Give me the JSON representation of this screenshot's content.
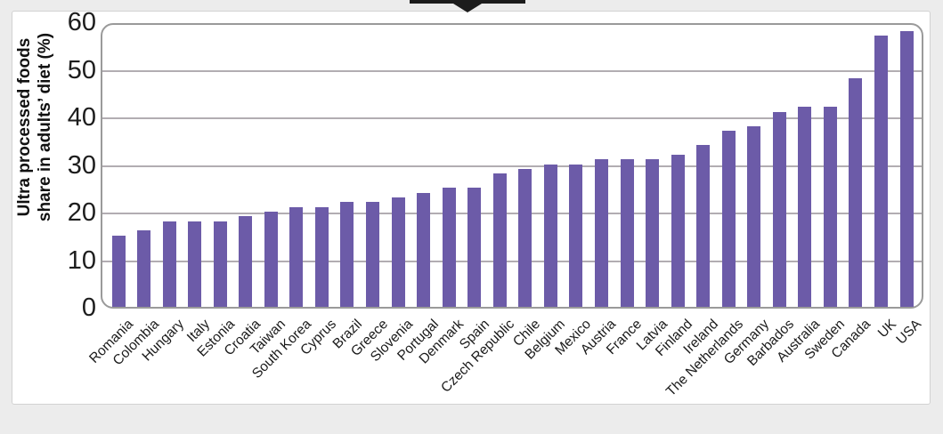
{
  "page": {
    "background_color": "#ececec",
    "card_color": "#ffffff",
    "tooltip_remnant_color": "#1c1c1c"
  },
  "chart_data": {
    "type": "bar",
    "title": "",
    "xlabel": "",
    "ylabel": "Ultra processed foods share in adults' diet (%)",
    "ylabel_lines": [
      "Ultra processed foods",
      "share in adults’ diet (%)"
    ],
    "categories": [
      "Romania",
      "Colombia",
      "Hungary",
      "Italy",
      "Estonia",
      "Croatia",
      "Taiwan",
      "South Korea",
      "Cyprus",
      "Brazil",
      "Greece",
      "Slovenia",
      "Portugal",
      "Denmark",
      "Spain",
      "Czech Republic",
      "Chile",
      "Belgium",
      "Mexico",
      "Austria",
      "France",
      "Latvia",
      "Finland",
      "Ireland",
      "The Netherlands",
      "Germany",
      "Barbados",
      "Australia",
      "Sweden",
      "Canada",
      "UK",
      "USA"
    ],
    "values": [
      15,
      16,
      18,
      18,
      18,
      19,
      20,
      21,
      21,
      22,
      22,
      23,
      24,
      25,
      25,
      28,
      29,
      30,
      30,
      31,
      31,
      31,
      32,
      34,
      37,
      38,
      41,
      42,
      42,
      48,
      57,
      58
    ],
    "ylim": [
      0,
      60
    ],
    "yticks": [
      0,
      10,
      20,
      30,
      40,
      50,
      60
    ],
    "grid": true,
    "legend": false,
    "bar_color": "#6c5ba8",
    "gridline_color": "#b2adb2",
    "plot_border_color": "#9a9a9a"
  }
}
